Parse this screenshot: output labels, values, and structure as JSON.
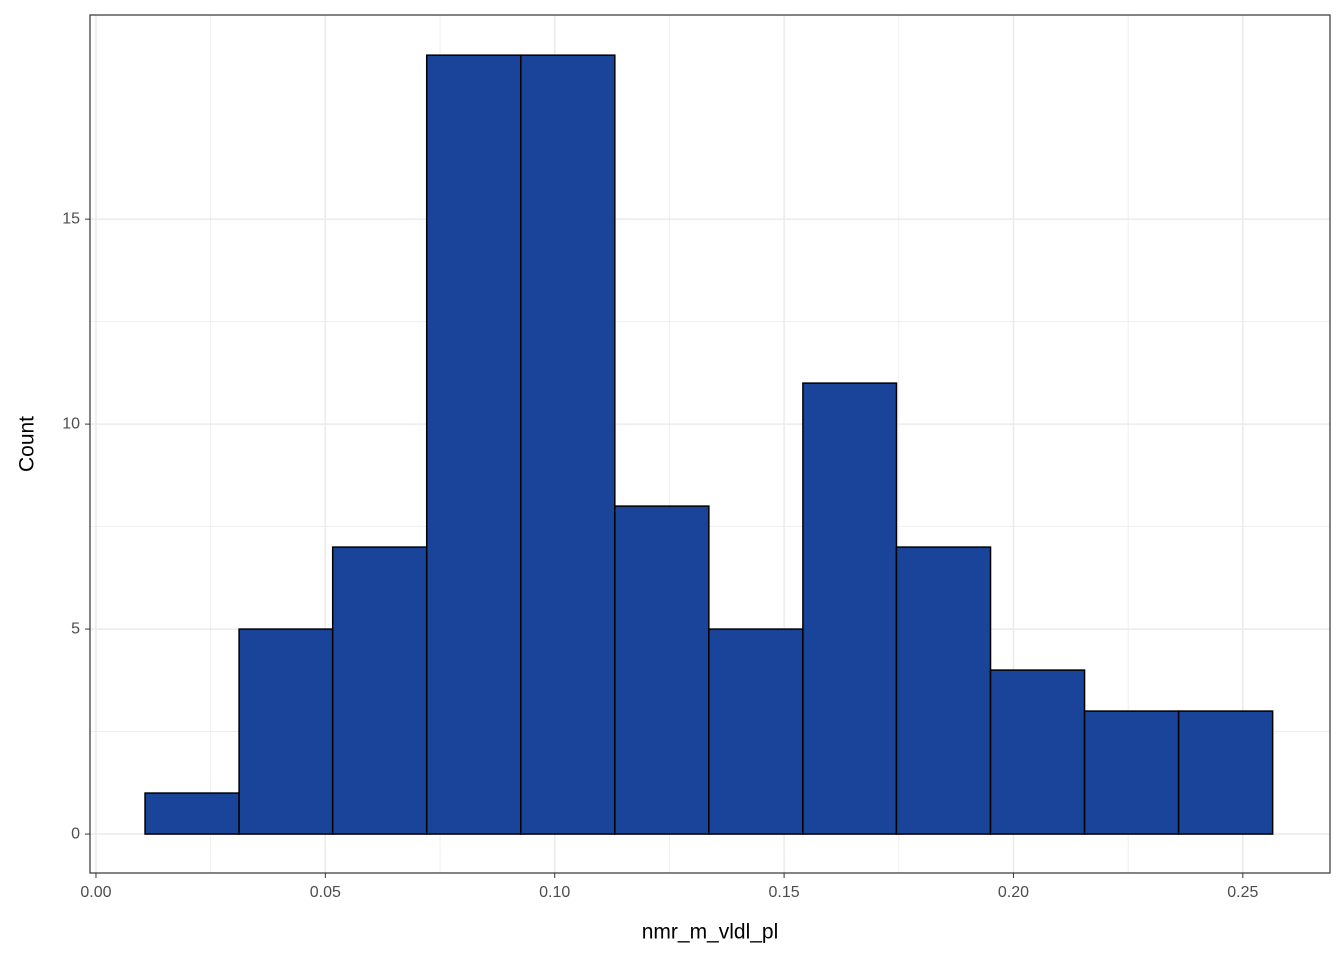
{
  "chart_data": {
    "type": "histogram",
    "x_label": "nmr_m_vldl_pl",
    "y_label": "Count",
    "bins": [
      0.0107,
      0.0312,
      0.0516,
      0.0721,
      0.0926,
      0.1131,
      0.1336,
      0.1541,
      0.1745,
      0.195,
      0.2155,
      0.236,
      0.2565
    ],
    "values": [
      1,
      5,
      7,
      19,
      19,
      8,
      5,
      11,
      7,
      4,
      3,
      3
    ],
    "color": "#19449a",
    "edgecolor": "#000000",
    "xlim": [
      -0.0013,
      0.269
    ],
    "ylim": [
      -0.95,
      19.98
    ],
    "xticks": [
      {
        "value": 0,
        "label": "0.00"
      },
      {
        "value": 0.05,
        "label": "0.05"
      },
      {
        "value": 0.1,
        "label": "0.10"
      },
      {
        "value": 0.15,
        "label": "0.15"
      },
      {
        "value": 0.2,
        "label": "0.20"
      },
      {
        "value": 0.25,
        "label": "0.25"
      }
    ],
    "yticks": [
      0,
      5,
      10,
      15
    ],
    "grid": true,
    "minor_grid": true
  }
}
